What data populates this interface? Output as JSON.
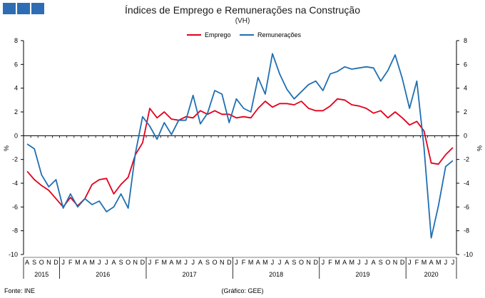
{
  "header": {
    "title": "Índices de Emprego  e Remunerações na Construção",
    "subtitle": "(VH)"
  },
  "footer": {
    "source": "Fonte: INE",
    "credit": "(Gráfico: GEE)"
  },
  "colors": {
    "logo": "#2e6db4",
    "emprego": "#e3001b",
    "remuneracoes": "#1f6fb2"
  },
  "chart_data": {
    "type": "line",
    "title": "Índices de Emprego  e Remunerações na Construção",
    "subtitle": "(VH)",
    "ylabel": "%",
    "ylabel_right": "%",
    "ylim": [
      -10,
      8
    ],
    "yticks": [
      -10,
      -8,
      -6,
      -4,
      -2,
      0,
      2,
      4,
      6,
      8
    ],
    "grid": false,
    "legend": "top-center",
    "month_labels": [
      "A",
      "S",
      "O",
      "N",
      "D",
      "J",
      "F",
      "M",
      "A",
      "M",
      "J",
      "J",
      "A",
      "S",
      "O",
      "N",
      "D",
      "J",
      "F",
      "M",
      "A",
      "M",
      "J",
      "J",
      "A",
      "S",
      "O",
      "N",
      "D",
      "J",
      "F",
      "M",
      "A",
      "M",
      "J",
      "J",
      "A",
      "S",
      "O",
      "N",
      "D",
      "J",
      "F",
      "M",
      "A",
      "M",
      "J",
      "J",
      "A",
      "S",
      "O",
      "N",
      "D",
      "J",
      "F",
      "M",
      "A",
      "M",
      "J",
      "J"
    ],
    "year_groups": [
      {
        "label": "2015",
        "start": 0,
        "count": 5
      },
      {
        "label": "2016",
        "start": 5,
        "count": 12
      },
      {
        "label": "2017",
        "start": 17,
        "count": 12
      },
      {
        "label": "2018",
        "start": 29,
        "count": 12
      },
      {
        "label": "2019",
        "start": 41,
        "count": 12
      },
      {
        "label": "2020",
        "start": 53,
        "count": 7
      }
    ],
    "series": [
      {
        "name": "Emprego",
        "color": "#e3001b",
        "values": [
          -3.0,
          -3.7,
          -4.2,
          -4.6,
          -5.3,
          -6.0,
          -5.2,
          -5.9,
          -5.3,
          -4.1,
          -3.7,
          -3.6,
          -4.9,
          -4.1,
          -3.5,
          -1.6,
          -0.6,
          2.3,
          1.5,
          2.0,
          1.4,
          1.3,
          1.6,
          1.5,
          2.1,
          1.8,
          2.1,
          1.8,
          1.8,
          1.5,
          1.6,
          1.5,
          2.3,
          2.9,
          2.4,
          2.7,
          2.7,
          2.6,
          2.9,
          2.3,
          2.1,
          2.1,
          2.5,
          3.1,
          3.0,
          2.6,
          2.5,
          2.3,
          1.9,
          2.1,
          1.5,
          2.0,
          1.5,
          0.9,
          1.2,
          0.4,
          -2.3,
          -2.4,
          -1.6,
          -1.0
        ]
      },
      {
        "name": "Remunerações",
        "color": "#1f6fb2",
        "values": [
          -0.7,
          -1.1,
          -3.3,
          -4.3,
          -3.7,
          -6.1,
          -4.9,
          -6.0,
          -5.3,
          -5.8,
          -5.5,
          -6.4,
          -6.0,
          -4.9,
          -6.1,
          -1.5,
          1.6,
          0.8,
          -0.3,
          1.1,
          0.1,
          1.3,
          1.3,
          3.4,
          1.0,
          1.9,
          3.8,
          3.5,
          1.1,
          3.1,
          2.3,
          2.0,
          4.9,
          3.5,
          6.9,
          5.2,
          3.9,
          3.1,
          3.7,
          4.3,
          4.6,
          3.8,
          5.2,
          5.4,
          5.8,
          5.6,
          5.7,
          5.8,
          5.7,
          4.6,
          5.5,
          6.8,
          4.8,
          2.3,
          4.6,
          -1.0,
          -8.6,
          -5.9,
          -2.6,
          -2.1
        ]
      }
    ]
  }
}
